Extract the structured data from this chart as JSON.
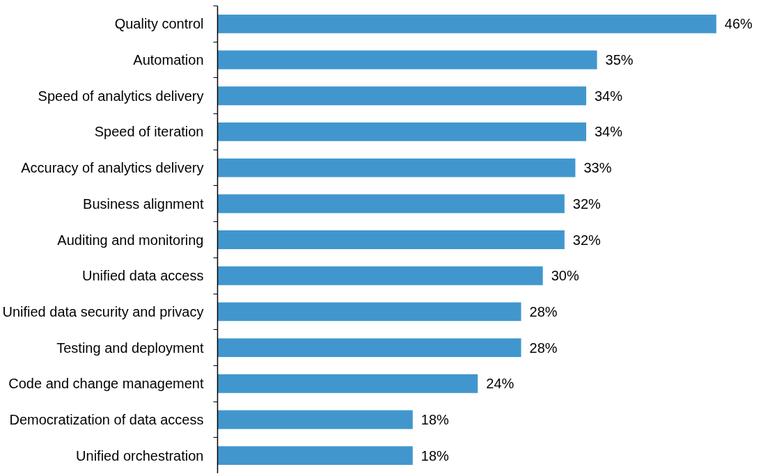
{
  "chart_data": {
    "type": "bar",
    "orientation": "horizontal",
    "categories": [
      "Quality control",
      "Automation",
      "Speed of analytics delivery",
      "Speed of iteration",
      "Accuracy of analytics delivery",
      "Business alignment",
      "Auditing and monitoring",
      "Unified data access",
      "Unified data security and privacy",
      "Testing and deployment",
      "Code and change management",
      "Democratization of data access",
      "Unified orchestration"
    ],
    "values": [
      46,
      35,
      34,
      34,
      33,
      32,
      32,
      30,
      28,
      28,
      24,
      18,
      18
    ],
    "value_labels": [
      "46%",
      "35%",
      "34%",
      "34%",
      "33%",
      "32%",
      "32%",
      "30%",
      "28%",
      "28%",
      "24%",
      "18%",
      "18%"
    ],
    "color": "#4197cd",
    "grid": false,
    "tick_labels": "y"
  }
}
